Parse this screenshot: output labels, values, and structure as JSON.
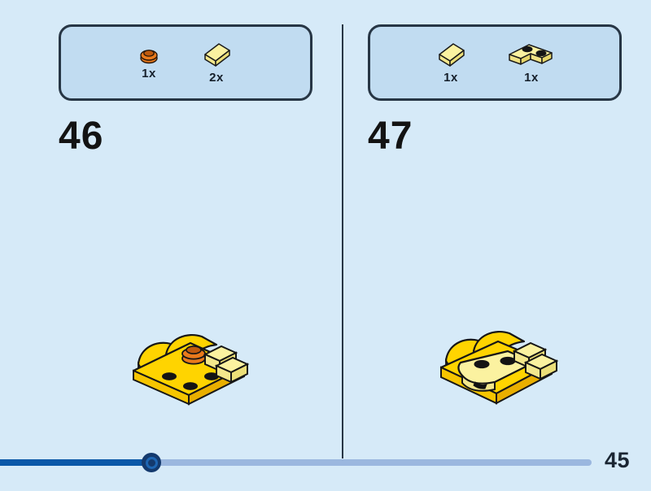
{
  "page": {
    "kind": "lego-building-instructions-spread",
    "page_number": "45",
    "background_color": "#d6eaf8"
  },
  "colors": {
    "panel_fill": "#c1dcf1",
    "outline_navy": "#273645",
    "progress_fill": "#0a58a8",
    "progress_track": "#9bb7df",
    "handle_outer": "#143a6e",
    "handle_ring": "#1e66b3",
    "text": "#131313",
    "brick_yellow": "#ffd400",
    "brick_pale_yellow": "#fbf2a0",
    "brick_orange": "#e97a1c"
  },
  "steps": [
    {
      "number": "46",
      "parts": [
        {
          "icon": "orange-round-plate-1x1-icon",
          "count": "1x"
        },
        {
          "icon": "yellow-slope-tile-icon",
          "count": "2x"
        }
      ]
    },
    {
      "number": "47",
      "parts": [
        {
          "icon": "yellow-slope-tile-icon",
          "count": "1x"
        },
        {
          "icon": "yellow-corner-plate-2x2-icon",
          "count": "1x"
        }
      ]
    }
  ],
  "pager": {
    "current_page": "45",
    "progress_percent": 23.2
  }
}
